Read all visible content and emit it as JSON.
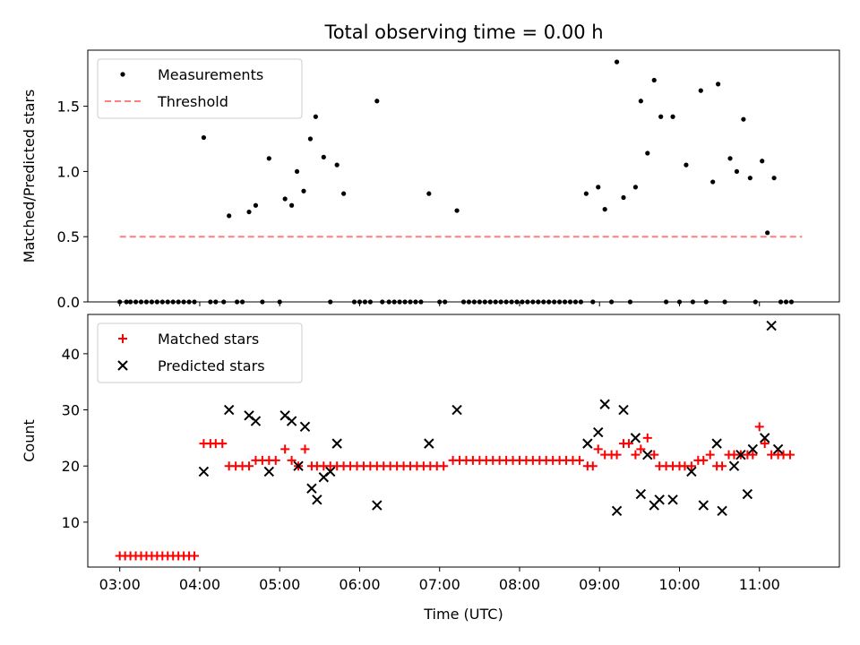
{
  "title": "Total observing time = 0.00 h",
  "chart_data": [
    {
      "type": "scatter",
      "ylabel": "Matched/Predicted stars",
      "xlabel": "",
      "xlim": [
        "02:36",
        "12:00"
      ],
      "ylim": [
        0,
        1.93
      ],
      "yticks": [
        "0.0",
        "0.5",
        "1.0",
        "1.5"
      ],
      "legend": "top-left",
      "series": [
        {
          "name": "Measurements",
          "color": "#000000",
          "marker": "dot",
          "points": [
            [
              "03:00",
              0
            ],
            [
              "03:05",
              0
            ],
            [
              "03:08",
              0
            ],
            [
              "03:12",
              0
            ],
            [
              "03:16",
              0
            ],
            [
              "03:20",
              0
            ],
            [
              "03:24",
              0
            ],
            [
              "03:28",
              0
            ],
            [
              "03:32",
              0
            ],
            [
              "03:36",
              0
            ],
            [
              "03:40",
              0
            ],
            [
              "03:44",
              0
            ],
            [
              "03:48",
              0
            ],
            [
              "03:52",
              0
            ],
            [
              "03:56",
              0
            ],
            [
              "04:03",
              1.26
            ],
            [
              "04:08",
              0
            ],
            [
              "04:12",
              0
            ],
            [
              "04:18",
              0
            ],
            [
              "04:22",
              0.66
            ],
            [
              "04:28",
              0
            ],
            [
              "04:32",
              0
            ],
            [
              "04:37",
              0.69
            ],
            [
              "04:42",
              0.74
            ],
            [
              "04:47",
              0
            ],
            [
              "04:52",
              1.1
            ],
            [
              "05:00",
              0
            ],
            [
              "05:04",
              0.79
            ],
            [
              "05:09",
              0.74
            ],
            [
              "05:13",
              1.0
            ],
            [
              "05:18",
              0.85
            ],
            [
              "05:23",
              1.25
            ],
            [
              "05:27",
              1.42
            ],
            [
              "05:33",
              1.11
            ],
            [
              "05:38",
              0
            ],
            [
              "05:43",
              1.05
            ],
            [
              "05:48",
              0.83
            ],
            [
              "05:56",
              0
            ],
            [
              "06:00",
              0
            ],
            [
              "06:04",
              0
            ],
            [
              "06:08",
              0
            ],
            [
              "06:13",
              1.54
            ],
            [
              "06:17",
              0
            ],
            [
              "06:22",
              0
            ],
            [
              "06:26",
              0
            ],
            [
              "06:30",
              0
            ],
            [
              "06:34",
              0
            ],
            [
              "06:38",
              0
            ],
            [
              "06:42",
              0
            ],
            [
              "06:46",
              0
            ],
            [
              "06:52",
              0.83
            ],
            [
              "07:00",
              0
            ],
            [
              "07:04",
              0
            ],
            [
              "07:13",
              0.7
            ],
            [
              "07:18",
              0
            ],
            [
              "07:22",
              0
            ],
            [
              "07:26",
              0
            ],
            [
              "07:30",
              0
            ],
            [
              "07:34",
              0
            ],
            [
              "07:38",
              0
            ],
            [
              "07:42",
              0
            ],
            [
              "07:46",
              0
            ],
            [
              "07:50",
              0
            ],
            [
              "07:54",
              0
            ],
            [
              "07:58",
              0
            ],
            [
              "08:02",
              0
            ],
            [
              "08:06",
              0
            ],
            [
              "08:10",
              0
            ],
            [
              "08:14",
              0
            ],
            [
              "08:18",
              0
            ],
            [
              "08:22",
              0
            ],
            [
              "08:26",
              0
            ],
            [
              "08:30",
              0
            ],
            [
              "08:34",
              0
            ],
            [
              "08:38",
              0
            ],
            [
              "08:42",
              0
            ],
            [
              "08:46",
              0
            ],
            [
              "08:50",
              0.83
            ],
            [
              "08:55",
              0
            ],
            [
              "08:59",
              0.88
            ],
            [
              "09:04",
              0.71
            ],
            [
              "09:09",
              0
            ],
            [
              "09:13",
              1.84
            ],
            [
              "09:18",
              0.8
            ],
            [
              "09:23",
              0
            ],
            [
              "09:27",
              0.88
            ],
            [
              "09:31",
              1.54
            ],
            [
              "09:36",
              1.14
            ],
            [
              "09:41",
              1.7
            ],
            [
              "09:46",
              1.42
            ],
            [
              "09:50",
              0
            ],
            [
              "09:55",
              1.42
            ],
            [
              "10:00",
              0
            ],
            [
              "10:05",
              1.05
            ],
            [
              "10:10",
              0
            ],
            [
              "10:16",
              1.62
            ],
            [
              "10:20",
              0
            ],
            [
              "10:25",
              0.92
            ],
            [
              "10:29",
              1.67
            ],
            [
              "10:34",
              0
            ],
            [
              "10:38",
              1.1
            ],
            [
              "10:43",
              1.0
            ],
            [
              "10:48",
              1.4
            ],
            [
              "10:53",
              0.95
            ],
            [
              "10:57",
              0
            ],
            [
              "11:02",
              1.08
            ],
            [
              "11:06",
              0.53
            ],
            [
              "11:11",
              0.95
            ],
            [
              "11:16",
              0
            ],
            [
              "11:20",
              0
            ],
            [
              "11:24",
              0
            ]
          ]
        },
        {
          "name": "Threshold",
          "color": "#ff7f7f",
          "style": "dashed",
          "points": [
            [
              "03:00",
              0.5
            ],
            [
              "11:32",
              0.5
            ]
          ]
        }
      ]
    },
    {
      "type": "scatter",
      "ylabel": "Count",
      "xlabel": "Time (UTC)",
      "xlim": [
        "02:36",
        "12:00"
      ],
      "ylim": [
        2,
        47
      ],
      "yticks": [
        "10",
        "20",
        "30",
        "40"
      ],
      "xticks": [
        "03:00",
        "04:00",
        "05:00",
        "06:00",
        "07:00",
        "08:00",
        "09:00",
        "10:00",
        "11:00"
      ],
      "legend": "top-left",
      "series": [
        {
          "name": "Matched stars",
          "color": "#ff0000",
          "marker": "plus",
          "points": [
            [
              "03:00",
              4
            ],
            [
              "03:04",
              4
            ],
            [
              "03:08",
              4
            ],
            [
              "03:12",
              4
            ],
            [
              "03:16",
              4
            ],
            [
              "03:20",
              4
            ],
            [
              "03:24",
              4
            ],
            [
              "03:28",
              4
            ],
            [
              "03:32",
              4
            ],
            [
              "03:36",
              4
            ],
            [
              "03:40",
              4
            ],
            [
              "03:44",
              4
            ],
            [
              "03:48",
              4
            ],
            [
              "03:52",
              4
            ],
            [
              "03:56",
              4
            ],
            [
              "04:03",
              24
            ],
            [
              "04:08",
              24
            ],
            [
              "04:12",
              24
            ],
            [
              "04:17",
              24
            ],
            [
              "04:22",
              20
            ],
            [
              "04:27",
              20
            ],
            [
              "04:32",
              20
            ],
            [
              "04:37",
              20
            ],
            [
              "04:42",
              21
            ],
            [
              "04:47",
              21
            ],
            [
              "04:52",
              21
            ],
            [
              "04:57",
              21
            ],
            [
              "05:04",
              23
            ],
            [
              "05:09",
              21
            ],
            [
              "05:14",
              20
            ],
            [
              "05:19",
              23
            ],
            [
              "05:24",
              20
            ],
            [
              "05:28",
              20
            ],
            [
              "05:33",
              20
            ],
            [
              "05:38",
              20
            ],
            [
              "05:43",
              20
            ],
            [
              "05:48",
              20
            ],
            [
              "05:53",
              20
            ],
            [
              "05:58",
              20
            ],
            [
              "06:03",
              20
            ],
            [
              "06:08",
              20
            ],
            [
              "06:13",
              20
            ],
            [
              "06:18",
              20
            ],
            [
              "06:23",
              20
            ],
            [
              "06:28",
              20
            ],
            [
              "06:33",
              20
            ],
            [
              "06:38",
              20
            ],
            [
              "06:43",
              20
            ],
            [
              "06:48",
              20
            ],
            [
              "06:53",
              20
            ],
            [
              "06:58",
              20
            ],
            [
              "07:03",
              20
            ],
            [
              "07:10",
              21
            ],
            [
              "07:15",
              21
            ],
            [
              "07:20",
              21
            ],
            [
              "07:25",
              21
            ],
            [
              "07:30",
              21
            ],
            [
              "07:35",
              21
            ],
            [
              "07:40",
              21
            ],
            [
              "07:45",
              21
            ],
            [
              "07:50",
              21
            ],
            [
              "07:55",
              21
            ],
            [
              "08:00",
              21
            ],
            [
              "08:05",
              21
            ],
            [
              "08:10",
              21
            ],
            [
              "08:15",
              21
            ],
            [
              "08:20",
              21
            ],
            [
              "08:25",
              21
            ],
            [
              "08:30",
              21
            ],
            [
              "08:35",
              21
            ],
            [
              "08:40",
              21
            ],
            [
              "08:45",
              21
            ],
            [
              "08:51",
              20
            ],
            [
              "08:55",
              20
            ],
            [
              "08:59",
              23
            ],
            [
              "09:04",
              22
            ],
            [
              "09:09",
              22
            ],
            [
              "09:13",
              22
            ],
            [
              "09:18",
              24
            ],
            [
              "09:22",
              24
            ],
            [
              "09:27",
              22
            ],
            [
              "09:31",
              23
            ],
            [
              "09:36",
              25
            ],
            [
              "09:41",
              22
            ],
            [
              "09:45",
              20
            ],
            [
              "09:50",
              20
            ],
            [
              "09:55",
              20
            ],
            [
              "10:00",
              20
            ],
            [
              "10:04",
              20
            ],
            [
              "10:09",
              20
            ],
            [
              "10:14",
              21
            ],
            [
              "10:18",
              21
            ],
            [
              "10:23",
              22
            ],
            [
              "10:28",
              20
            ],
            [
              "10:32",
              20
            ],
            [
              "10:37",
              22
            ],
            [
              "10:41",
              22
            ],
            [
              "10:46",
              22
            ],
            [
              "10:51",
              22
            ],
            [
              "10:55",
              22
            ],
            [
              "11:00",
              27
            ],
            [
              "11:04",
              24
            ],
            [
              "11:09",
              22
            ],
            [
              "11:14",
              22
            ],
            [
              "11:18",
              22
            ],
            [
              "11:23",
              22
            ]
          ]
        },
        {
          "name": "Predicted stars",
          "color": "#000000",
          "marker": "x",
          "points": [
            [
              "04:03",
              19
            ],
            [
              "04:22",
              30
            ],
            [
              "04:37",
              29
            ],
            [
              "04:42",
              28
            ],
            [
              "04:52",
              19
            ],
            [
              "05:04",
              29
            ],
            [
              "05:09",
              28
            ],
            [
              "05:14",
              20
            ],
            [
              "05:19",
              27
            ],
            [
              "05:24",
              16
            ],
            [
              "05:28",
              14
            ],
            [
              "05:33",
              18
            ],
            [
              "05:38",
              19
            ],
            [
              "05:43",
              24
            ],
            [
              "06:13",
              13
            ],
            [
              "06:52",
              24
            ],
            [
              "07:13",
              30
            ],
            [
              "08:51",
              24
            ],
            [
              "08:59",
              26
            ],
            [
              "09:04",
              31
            ],
            [
              "09:13",
              12
            ],
            [
              "09:18",
              30
            ],
            [
              "09:27",
              25
            ],
            [
              "09:31",
              15
            ],
            [
              "09:36",
              22
            ],
            [
              "09:41",
              13
            ],
            [
              "09:45",
              14
            ],
            [
              "09:55",
              14
            ],
            [
              "10:09",
              19
            ],
            [
              "10:18",
              13
            ],
            [
              "10:28",
              24
            ],
            [
              "10:32",
              12
            ],
            [
              "10:41",
              20
            ],
            [
              "10:46",
              22
            ],
            [
              "10:51",
              15
            ],
            [
              "10:55",
              23
            ],
            [
              "11:04",
              25
            ],
            [
              "11:09",
              45
            ],
            [
              "11:14",
              23
            ]
          ]
        }
      ]
    }
  ]
}
